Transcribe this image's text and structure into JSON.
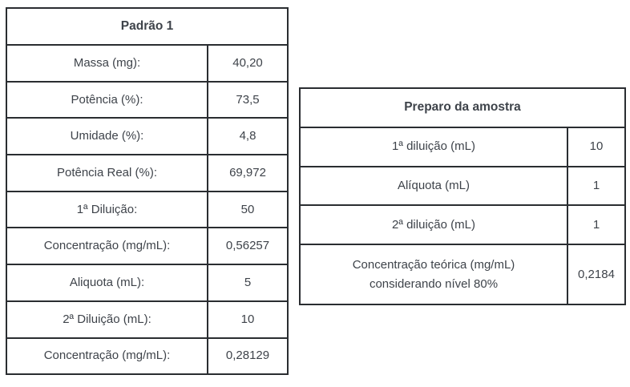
{
  "left_table": {
    "title": "Padrão 1",
    "rows": [
      {
        "label": "Massa (mg):",
        "value": "40,20"
      },
      {
        "label": "Potência (%):",
        "value": "73,5"
      },
      {
        "label": "Umidade (%):",
        "value": "4,8"
      },
      {
        "label": "Potência Real (%):",
        "value": "69,972"
      },
      {
        "label": "1ª Diluição:",
        "value": "50"
      },
      {
        "label": "Concentração (mg/mL):",
        "value": "0,56257"
      },
      {
        "label": "Aliquota (mL):",
        "value": "5"
      },
      {
        "label": "2ª Diluição (mL):",
        "value": "10"
      },
      {
        "label": "Concentração (mg/mL):",
        "value": "0,28129"
      }
    ]
  },
  "right_table": {
    "title": "Preparo da amostra",
    "rows": [
      {
        "label": "1ª diluição (mL)",
        "value": "10"
      },
      {
        "label": "Alíquota (mL)",
        "value": "1"
      },
      {
        "label": "2ª diluição (mL)",
        "value": "1"
      },
      {
        "label": "Concentração teórica (mg/mL)\nconsiderando nível 80%",
        "value": "0,2184"
      }
    ]
  }
}
